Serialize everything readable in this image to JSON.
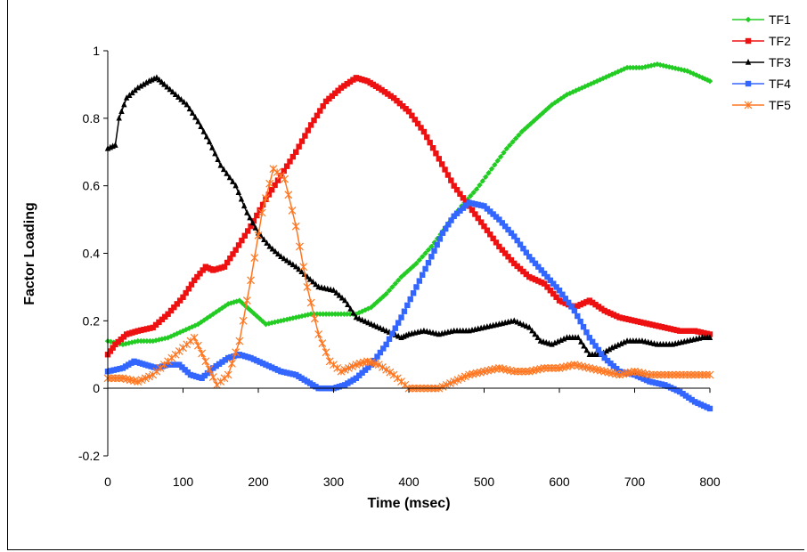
{
  "chart_data": {
    "type": "line",
    "title": "",
    "xlabel": "Time (msec)",
    "ylabel": "Factor Loading",
    "xlim": [
      0,
      800
    ],
    "ylim": [
      -0.2,
      1
    ],
    "xticks": [
      "0",
      "100",
      "200",
      "300",
      "400",
      "500",
      "600",
      "700",
      "800"
    ],
    "yticks": [
      "-0.2",
      "0",
      "0.2",
      "0.4",
      "0.6",
      "0.8",
      "1"
    ],
    "grid": false,
    "legend_position": "top-right",
    "series": [
      {
        "name": "TF1",
        "color": "#22cc22",
        "marker": "diamond",
        "points": [
          [
            0,
            0.14
          ],
          [
            20,
            0.13
          ],
          [
            40,
            0.14
          ],
          [
            60,
            0.14
          ],
          [
            80,
            0.15
          ],
          [
            100,
            0.17
          ],
          [
            120,
            0.19
          ],
          [
            140,
            0.22
          ],
          [
            160,
            0.25
          ],
          [
            175,
            0.26
          ],
          [
            190,
            0.23
          ],
          [
            210,
            0.19
          ],
          [
            230,
            0.2
          ],
          [
            250,
            0.21
          ],
          [
            270,
            0.22
          ],
          [
            290,
            0.22
          ],
          [
            310,
            0.22
          ],
          [
            330,
            0.22
          ],
          [
            350,
            0.24
          ],
          [
            370,
            0.28
          ],
          [
            390,
            0.33
          ],
          [
            410,
            0.37
          ],
          [
            430,
            0.42
          ],
          [
            450,
            0.48
          ],
          [
            470,
            0.54
          ],
          [
            490,
            0.59
          ],
          [
            510,
            0.65
          ],
          [
            530,
            0.71
          ],
          [
            550,
            0.76
          ],
          [
            570,
            0.8
          ],
          [
            590,
            0.84
          ],
          [
            610,
            0.87
          ],
          [
            630,
            0.89
          ],
          [
            650,
            0.91
          ],
          [
            670,
            0.93
          ],
          [
            690,
            0.95
          ],
          [
            710,
            0.95
          ],
          [
            730,
            0.96
          ],
          [
            750,
            0.95
          ],
          [
            770,
            0.94
          ],
          [
            790,
            0.92
          ],
          [
            800,
            0.91
          ]
        ]
      },
      {
        "name": "TF2",
        "color": "#ee1111",
        "marker": "square",
        "points": [
          [
            0,
            0.1
          ],
          [
            10,
            0.13
          ],
          [
            25,
            0.16
          ],
          [
            40,
            0.17
          ],
          [
            60,
            0.18
          ],
          [
            80,
            0.22
          ],
          [
            100,
            0.27
          ],
          [
            115,
            0.32
          ],
          [
            130,
            0.36
          ],
          [
            140,
            0.35
          ],
          [
            155,
            0.36
          ],
          [
            170,
            0.41
          ],
          [
            190,
            0.48
          ],
          [
            210,
            0.56
          ],
          [
            230,
            0.63
          ],
          [
            250,
            0.7
          ],
          [
            270,
            0.78
          ],
          [
            290,
            0.85
          ],
          [
            310,
            0.89
          ],
          [
            330,
            0.92
          ],
          [
            345,
            0.91
          ],
          [
            360,
            0.89
          ],
          [
            380,
            0.86
          ],
          [
            400,
            0.82
          ],
          [
            420,
            0.76
          ],
          [
            440,
            0.68
          ],
          [
            460,
            0.6
          ],
          [
            480,
            0.54
          ],
          [
            500,
            0.48
          ],
          [
            520,
            0.42
          ],
          [
            540,
            0.37
          ],
          [
            560,
            0.33
          ],
          [
            580,
            0.31
          ],
          [
            600,
            0.26
          ],
          [
            620,
            0.24
          ],
          [
            640,
            0.26
          ],
          [
            660,
            0.23
          ],
          [
            680,
            0.21
          ],
          [
            700,
            0.2
          ],
          [
            720,
            0.19
          ],
          [
            740,
            0.18
          ],
          [
            760,
            0.17
          ],
          [
            780,
            0.17
          ],
          [
            800,
            0.16
          ]
        ]
      },
      {
        "name": "TF3",
        "color": "#000000",
        "marker": "triangle",
        "points": [
          [
            0,
            0.71
          ],
          [
            10,
            0.72
          ],
          [
            15,
            0.8
          ],
          [
            25,
            0.86
          ],
          [
            40,
            0.89
          ],
          [
            55,
            0.91
          ],
          [
            65,
            0.92
          ],
          [
            75,
            0.9
          ],
          [
            90,
            0.87
          ],
          [
            105,
            0.84
          ],
          [
            120,
            0.79
          ],
          [
            135,
            0.73
          ],
          [
            150,
            0.66
          ],
          [
            170,
            0.6
          ],
          [
            185,
            0.52
          ],
          [
            200,
            0.46
          ],
          [
            215,
            0.42
          ],
          [
            230,
            0.39
          ],
          [
            250,
            0.36
          ],
          [
            265,
            0.33
          ],
          [
            280,
            0.3
          ],
          [
            300,
            0.29
          ],
          [
            315,
            0.26
          ],
          [
            330,
            0.21
          ],
          [
            350,
            0.19
          ],
          [
            370,
            0.17
          ],
          [
            390,
            0.15
          ],
          [
            400,
            0.16
          ],
          [
            420,
            0.17
          ],
          [
            440,
            0.16
          ],
          [
            460,
            0.17
          ],
          [
            480,
            0.17
          ],
          [
            500,
            0.18
          ],
          [
            520,
            0.19
          ],
          [
            540,
            0.2
          ],
          [
            560,
            0.18
          ],
          [
            575,
            0.14
          ],
          [
            590,
            0.13
          ],
          [
            610,
            0.15
          ],
          [
            625,
            0.15
          ],
          [
            640,
            0.1
          ],
          [
            655,
            0.1
          ],
          [
            670,
            0.12
          ],
          [
            690,
            0.14
          ],
          [
            710,
            0.14
          ],
          [
            730,
            0.13
          ],
          [
            750,
            0.13
          ],
          [
            770,
            0.14
          ],
          [
            790,
            0.15
          ],
          [
            800,
            0.15
          ]
        ]
      },
      {
        "name": "TF4",
        "color": "#3366ff",
        "marker": "square",
        "points": [
          [
            0,
            0.05
          ],
          [
            20,
            0.06
          ],
          [
            35,
            0.08
          ],
          [
            50,
            0.07
          ],
          [
            65,
            0.06
          ],
          [
            80,
            0.07
          ],
          [
            95,
            0.07
          ],
          [
            110,
            0.04
          ],
          [
            125,
            0.03
          ],
          [
            140,
            0.06
          ],
          [
            160,
            0.09
          ],
          [
            175,
            0.1
          ],
          [
            190,
            0.09
          ],
          [
            210,
            0.07
          ],
          [
            230,
            0.05
          ],
          [
            250,
            0.04
          ],
          [
            265,
            0.02
          ],
          [
            280,
            0.0
          ],
          [
            300,
            0.0
          ],
          [
            315,
            0.01
          ],
          [
            330,
            0.03
          ],
          [
            350,
            0.07
          ],
          [
            370,
            0.13
          ],
          [
            390,
            0.21
          ],
          [
            410,
            0.3
          ],
          [
            430,
            0.39
          ],
          [
            445,
            0.46
          ],
          [
            460,
            0.51
          ],
          [
            480,
            0.55
          ],
          [
            500,
            0.54
          ],
          [
            520,
            0.5
          ],
          [
            540,
            0.45
          ],
          [
            560,
            0.39
          ],
          [
            580,
            0.34
          ],
          [
            600,
            0.29
          ],
          [
            620,
            0.23
          ],
          [
            640,
            0.15
          ],
          [
            660,
            0.09
          ],
          [
            680,
            0.05
          ],
          [
            700,
            0.04
          ],
          [
            720,
            0.02
          ],
          [
            740,
            0.01
          ],
          [
            760,
            -0.01
          ],
          [
            780,
            -0.04
          ],
          [
            800,
            -0.06
          ]
        ]
      },
      {
        "name": "TF5",
        "color": "#ff7722",
        "marker": "star",
        "points": [
          [
            0,
            0.03
          ],
          [
            20,
            0.03
          ],
          [
            40,
            0.02
          ],
          [
            60,
            0.04
          ],
          [
            80,
            0.08
          ],
          [
            100,
            0.12
          ],
          [
            115,
            0.15
          ],
          [
            130,
            0.08
          ],
          [
            145,
            0.01
          ],
          [
            160,
            0.04
          ],
          [
            175,
            0.14
          ],
          [
            190,
            0.32
          ],
          [
            205,
            0.52
          ],
          [
            220,
            0.65
          ],
          [
            235,
            0.62
          ],
          [
            250,
            0.48
          ],
          [
            265,
            0.3
          ],
          [
            280,
            0.16
          ],
          [
            295,
            0.08
          ],
          [
            310,
            0.05
          ],
          [
            330,
            0.07
          ],
          [
            345,
            0.08
          ],
          [
            360,
            0.07
          ],
          [
            380,
            0.04
          ],
          [
            400,
            0.0
          ],
          [
            420,
            0.0
          ],
          [
            440,
            0.0
          ],
          [
            460,
            0.02
          ],
          [
            480,
            0.04
          ],
          [
            500,
            0.05
          ],
          [
            520,
            0.06
          ],
          [
            540,
            0.05
          ],
          [
            560,
            0.05
          ],
          [
            580,
            0.06
          ],
          [
            600,
            0.06
          ],
          [
            620,
            0.07
          ],
          [
            640,
            0.06
          ],
          [
            660,
            0.05
          ],
          [
            680,
            0.04
          ],
          [
            700,
            0.05
          ],
          [
            720,
            0.04
          ],
          [
            740,
            0.04
          ],
          [
            760,
            0.04
          ],
          [
            780,
            0.04
          ],
          [
            800,
            0.04
          ]
        ]
      }
    ]
  }
}
